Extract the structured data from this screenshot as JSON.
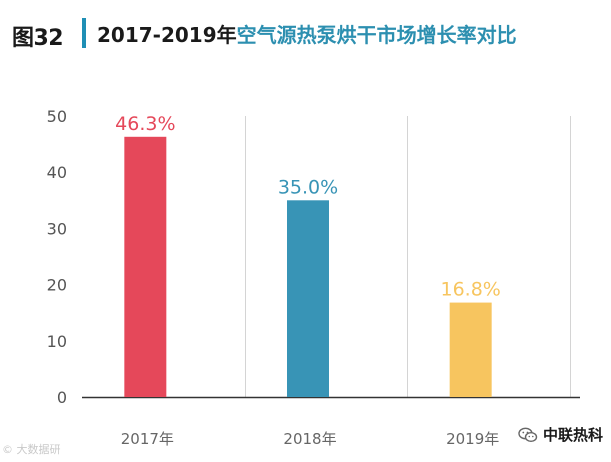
{
  "header": {
    "fig_label": "图32",
    "title_year": "2017-2019年",
    "title_topic": "空气源热泵烘干市场增长率对比",
    "accent_color": "#1f8fb5"
  },
  "chart_data": {
    "type": "bar",
    "title": "2017-2019年空气源热泵烘干市场增长率对比",
    "xlabel": "",
    "ylabel": "",
    "ylim": [
      0,
      50
    ],
    "yticks": [
      0,
      10,
      20,
      30,
      40,
      50
    ],
    "grid": "vertical",
    "categories": [
      "2017年",
      "2018年",
      "2019年"
    ],
    "values": [
      46.3,
      35.0,
      16.8
    ],
    "value_labels": [
      "46.3%",
      "35.0%",
      "16.8%"
    ],
    "colors": [
      "#e5485a",
      "#3894b6",
      "#f7c55f"
    ]
  },
  "watermarks": {
    "left_text": "大数据研",
    "right_text": "中联热科",
    "right_icon": "wechat-icon"
  }
}
